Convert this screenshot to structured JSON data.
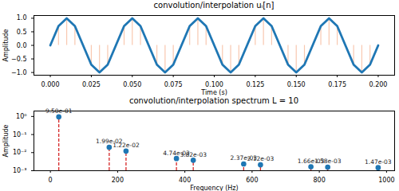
{
  "chart_data": [
    {
      "type": "line",
      "title": "convolution/interpolation uᵢ[n]",
      "xlabel": "Time (s)",
      "ylabel": "Amplitude",
      "x": [
        0,
        0.005,
        0.01,
        0.015,
        0.02,
        0.025,
        0.03,
        0.035,
        0.04,
        0.045,
        0.05,
        0.055,
        0.06,
        0.065,
        0.07,
        0.075,
        0.08,
        0.085,
        0.09,
        0.095,
        0.1,
        0.105,
        0.11,
        0.115,
        0.12,
        0.125,
        0.13,
        0.135,
        0.14,
        0.145,
        0.15,
        0.155,
        0.16,
        0.165,
        0.17,
        0.175,
        0.18,
        0.185,
        0.19,
        0.195,
        0.2
      ],
      "values": [
        0,
        0.71,
        1,
        0.71,
        0,
        -0.71,
        -1,
        -0.71,
        0,
        0.71,
        1,
        0.71,
        0,
        -0.71,
        -1,
        -0.71,
        0,
        0.71,
        1,
        0.71,
        0,
        -0.71,
        -1,
        -0.71,
        0,
        0.71,
        1,
        0.71,
        0,
        -0.71,
        -1,
        -0.71,
        0,
        0.71,
        1,
        0.71,
        0,
        -0.71,
        -1,
        -0.71,
        0
      ],
      "color": "#1f77b4",
      "line_style": "solid",
      "xlim": [
        -0.01,
        0.21
      ],
      "xticks": [
        {
          "value": 0,
          "label": "0.000"
        },
        {
          "value": 0.025,
          "label": "0.025"
        },
        {
          "value": 0.05,
          "label": "0.050"
        },
        {
          "value": 0.075,
          "label": "0.075"
        },
        {
          "value": 0.1,
          "label": "0.100"
        },
        {
          "value": 0.125,
          "label": "0.125"
        },
        {
          "value": 0.15,
          "label": "0.150"
        },
        {
          "value": 0.175,
          "label": "0.175"
        },
        {
          "value": 0.2,
          "label": "0.200"
        }
      ],
      "ylim": [
        -1.1,
        1.1
      ],
      "yticks": [
        {
          "value": -1,
          "label": "−1.0"
        },
        {
          "value": -0.5,
          "label": "−0.5"
        },
        {
          "value": 0,
          "label": "0.0"
        },
        {
          "value": 0.5,
          "label": "0.5"
        },
        {
          "value": 1,
          "label": "1.0"
        }
      ],
      "grid": false
    },
    {
      "type": "stem",
      "title": "convolution/interpolation spectrum L = 10",
      "xlabel": "Frequency (Hz)",
      "ylabel": "Amplitude",
      "x": [
        25,
        175,
        225,
        375,
        425,
        575,
        625,
        775,
        825,
        975
      ],
      "values": [
        0.95,
        0.0199,
        0.0122,
        0.00474,
        0.00382,
        0.00237,
        0.00212,
        0.00166,
        0.00158,
        0.00147
      ],
      "value_labels": [
        "9.50e-01",
        "1.99e-02",
        "1.22e-02",
        "4.74e-03",
        "3.82e-03",
        "2.37e-03",
        "2.12e-03",
        "1.66e-03",
        "1.58e-03",
        "1.47e-03"
      ],
      "data_labels": true,
      "color": "#1f77b4",
      "marker": "o",
      "line_style": "dashed",
      "log": "y",
      "xlim": [
        -49,
        1024
      ],
      "xticks": [
        0,
        200,
        400,
        600,
        800,
        1000
      ],
      "ylim": [
        0.001,
        2
      ],
      "yticks": [
        {
          "value": 0.001,
          "label": "10⁻³"
        },
        {
          "value": 0.01,
          "label": "10⁻²"
        },
        {
          "value": 0.1,
          "label": "10⁻¹"
        },
        {
          "value": 1,
          "label": "10⁰"
        }
      ],
      "grid": false
    }
  ]
}
